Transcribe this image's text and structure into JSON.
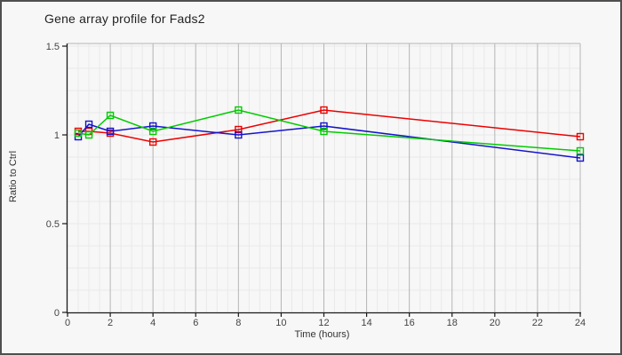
{
  "window": {
    "title": "Gene array profile for Fads2"
  },
  "chart_data": {
    "type": "line",
    "title": "Gene array profile for Fads2",
    "xlabel": "Time (hours)",
    "ylabel": "Ratio to Ctrl",
    "x": [
      0.5,
      1,
      2,
      4,
      8,
      12,
      24
    ],
    "series": [
      {
        "name": "series-red",
        "color": "#ee0000",
        "values": [
          1.02,
          1.02,
          1.01,
          0.96,
          1.03,
          1.14,
          0.99
        ]
      },
      {
        "name": "series-blue",
        "color": "#1414cc",
        "values": [
          0.99,
          1.06,
          1.02,
          1.05,
          1.0,
          1.05,
          0.87
        ]
      },
      {
        "name": "series-green",
        "color": "#00cc00",
        "values": [
          1.01,
          1.0,
          1.11,
          1.02,
          1.14,
          1.02,
          0.91
        ]
      }
    ],
    "xlim": [
      0,
      24
    ],
    "ylim": [
      0,
      1.5
    ],
    "x_ticks": [
      0,
      2,
      4,
      6,
      8,
      10,
      12,
      14,
      16,
      18,
      20,
      22,
      24
    ],
    "x_tick_labels": [
      "0",
      "2",
      "4",
      "6",
      "8",
      "10",
      "12",
      "14",
      "16",
      "18",
      "20",
      "22",
      "24"
    ],
    "y_ticks": [
      0,
      0.5,
      1,
      1.5
    ],
    "y_tick_labels": [
      "0",
      "0.5",
      "1",
      "1.5"
    ],
    "grid": {
      "x_minor_step": 0.5,
      "y_minor_step": 0.125,
      "grid_on": true
    },
    "marker": "open-square",
    "legend": "none"
  },
  "colors": {
    "background": "#f7f7f7",
    "frame_border": "#4f4f4f",
    "grid_minor": "#e9e9e9",
    "grid_major": "#b5b5b5",
    "axis": "#1a1a1a",
    "tick_label": "#444444",
    "title_text": "#222222"
  }
}
